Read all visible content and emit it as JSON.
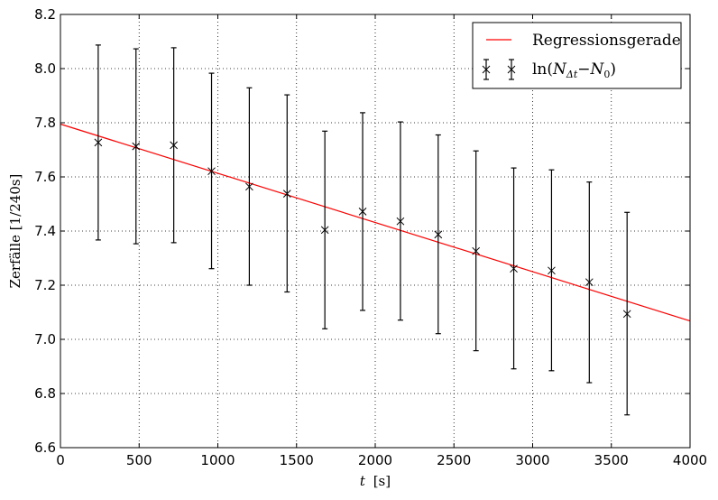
{
  "chart_data": {
    "type": "scatter",
    "xlabel_var": "t",
    "xlabel_unit": "[s]",
    "ylabel": "Zerfälle [1/240s]",
    "xlim": [
      0,
      4000
    ],
    "ylim": [
      6.6,
      8.2
    ],
    "xticks": [
      0,
      500,
      1000,
      1500,
      2000,
      2500,
      3000,
      3500,
      4000
    ],
    "yticks": [
      6.6,
      6.8,
      7.0,
      7.2,
      7.4,
      7.6,
      7.8,
      8.0,
      8.2
    ],
    "grid": true,
    "legend_position": "top-right",
    "series": [
      {
        "name": "Regressionsgerade",
        "kind": "line",
        "color": "#ff0000",
        "x": [
          0,
          4000
        ],
        "y": [
          7.795,
          7.068
        ]
      },
      {
        "name": "ln(NΔt−N0)",
        "kind": "errorbar",
        "color": "#000000",
        "marker": "x",
        "x": [
          240,
          480,
          720,
          960,
          1200,
          1440,
          1680,
          1920,
          2160,
          2400,
          2640,
          2880,
          3120,
          3360,
          3600
        ],
        "y": [
          7.727,
          7.713,
          7.717,
          7.621,
          7.564,
          7.538,
          7.404,
          7.472,
          7.436,
          7.387,
          7.326,
          7.261,
          7.254,
          7.211,
          7.094
        ],
        "yerr_low": [
          7.367,
          7.353,
          7.357,
          7.261,
          7.2,
          7.175,
          7.039,
          7.107,
          7.071,
          7.021,
          6.958,
          6.891,
          6.884,
          6.84,
          6.721
        ],
        "yerr_high": [
          8.087,
          8.073,
          8.077,
          7.983,
          7.929,
          7.903,
          7.769,
          7.837,
          7.803,
          7.755,
          7.696,
          7.633,
          7.626,
          7.581,
          7.469
        ]
      }
    ]
  },
  "legend": {
    "regression_label": "Regressionsgerade",
    "data_label_prefix": "ln(",
    "data_label_N1": "N",
    "data_label_sub": "Δt",
    "data_label_minus": "−",
    "data_label_N2": "N",
    "data_label_sub2": "0",
    "data_label_suffix": ")"
  }
}
